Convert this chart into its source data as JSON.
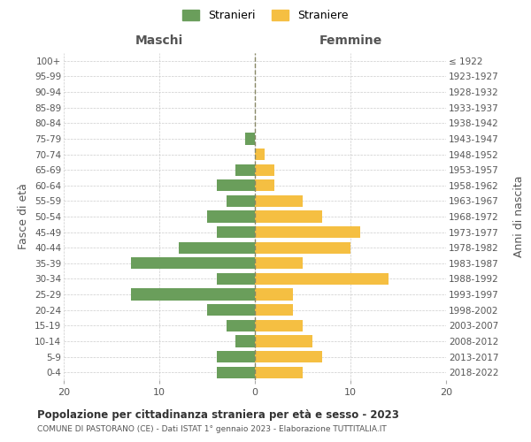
{
  "age_groups": [
    "0-4",
    "5-9",
    "10-14",
    "15-19",
    "20-24",
    "25-29",
    "30-34",
    "35-39",
    "40-44",
    "45-49",
    "50-54",
    "55-59",
    "60-64",
    "65-69",
    "70-74",
    "75-79",
    "80-84",
    "85-89",
    "90-94",
    "95-99",
    "100+"
  ],
  "birth_years": [
    "2018-2022",
    "2013-2017",
    "2008-2012",
    "2003-2007",
    "1998-2002",
    "1993-1997",
    "1988-1992",
    "1983-1987",
    "1978-1982",
    "1973-1977",
    "1968-1972",
    "1963-1967",
    "1958-1962",
    "1953-1957",
    "1948-1952",
    "1943-1947",
    "1938-1942",
    "1933-1937",
    "1928-1932",
    "1923-1927",
    "≤ 1922"
  ],
  "males": [
    4,
    4,
    2,
    3,
    5,
    13,
    4,
    13,
    8,
    4,
    5,
    3,
    4,
    2,
    0,
    1,
    0,
    0,
    0,
    0,
    0
  ],
  "females": [
    5,
    7,
    6,
    5,
    4,
    4,
    14,
    5,
    10,
    11,
    7,
    5,
    2,
    2,
    1,
    0,
    0,
    0,
    0,
    0,
    0
  ],
  "male_color": "#6a9e5b",
  "female_color": "#f5bf42",
  "background_color": "#ffffff",
  "grid_color": "#cccccc",
  "title": "Popolazione per cittadinanza straniera per età e sesso - 2023",
  "subtitle": "COMUNE DI PASTORANO (CE) - Dati ISTAT 1° gennaio 2023 - Elaborazione TUTTITALIA.IT",
  "xlabel_left": "Maschi",
  "xlabel_right": "Femmine",
  "ylabel_left": "Fasce di età",
  "ylabel_right": "Anni di nascita",
  "legend_male": "Stranieri",
  "legend_female": "Straniere",
  "xlim": 20,
  "dashed_line_color": "#888866"
}
